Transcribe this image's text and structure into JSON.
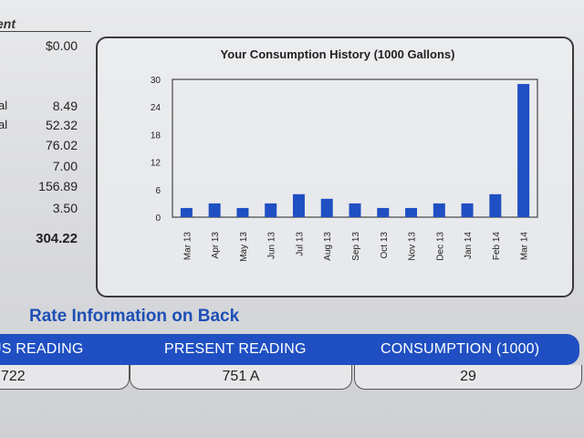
{
  "statement": {
    "heading": "ent",
    "balance": "$0.00",
    "rows": [
      {
        "label": "al",
        "value": "8.49"
      },
      {
        "label": "al",
        "value": "52.32"
      },
      {
        "label": "l",
        "value": "76.02"
      },
      {
        "label": "",
        "value": "7.00"
      },
      {
        "label": "",
        "value": "156.89"
      },
      {
        "label": "",
        "value": "3.50"
      }
    ],
    "total": "304.22"
  },
  "chart_data": {
    "type": "bar",
    "title": "Your Consumption History (1000 Gallons)",
    "categories": [
      "Mar 13",
      "Apr 13",
      "May 13",
      "Jun 13",
      "Jul 13",
      "Aug 13",
      "Sep 13",
      "Oct 13",
      "Nov 13",
      "Dec 13",
      "Jan 14",
      "Feb 14",
      "Mar 14"
    ],
    "values": [
      2,
      3,
      2,
      3,
      5,
      4,
      3,
      2,
      2,
      3,
      3,
      5,
      29
    ],
    "yticks": [
      0,
      6,
      12,
      18,
      24,
      30
    ],
    "ylim": [
      0,
      30
    ],
    "bar_color": "#1f4fc2",
    "grid": false,
    "xlabel": "",
    "ylabel": ""
  },
  "rate_info": "Rate Information on Back",
  "readings": {
    "headers": [
      "US READING",
      "PRESENT READING",
      "CONSUMPTION (1000)"
    ],
    "values": [
      "722",
      "751 A",
      "29"
    ]
  },
  "colors": {
    "accent": "#1f4fc2",
    "text": "#222222"
  }
}
